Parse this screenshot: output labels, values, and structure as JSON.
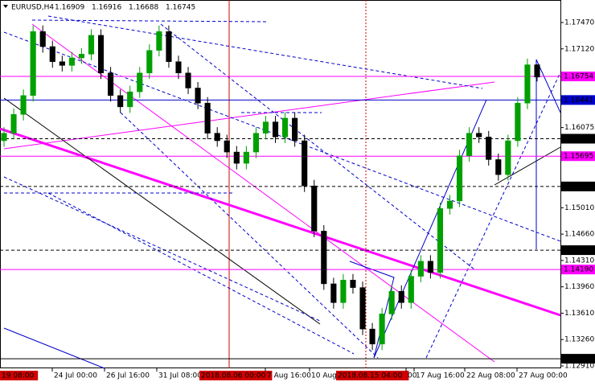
{
  "chart_data": {
    "type": "candlestick",
    "title": "EURUSD,H4",
    "open": [
      1.159,
      1.16,
      1.1625,
      1.165,
      1.1735,
      1.1715,
      1.1695,
      1.169,
      1.17,
      1.1705,
      1.173,
      1.168,
      1.165,
      1.1635,
      1.1655,
      1.168,
      1.171,
      1.1735,
      1.1695,
      1.168,
      1.166,
      1.164,
      1.16,
      1.159,
      1.1575,
      1.156,
      1.1575,
      1.16,
      1.1615,
      1.1595,
      1.162,
      1.159,
      1.153,
      1.147,
      1.14,
      1.1375,
      1.1405,
      1.1395,
      1.134,
      1.132,
      1.136,
      1.139,
      1.1375,
      1.141,
      1.143,
      1.1415,
      1.15,
      1.151,
      1.157,
      1.16,
      1.1595,
      1.1565,
      1.1545,
      1.159,
      1.164,
      1.16909
    ],
    "high": [
      1.1608,
      1.1633,
      1.1658,
      1.1743,
      1.1743,
      1.1723,
      1.1703,
      1.1708,
      1.1713,
      1.1738,
      1.1738,
      1.1688,
      1.1658,
      1.1663,
      1.1688,
      1.1718,
      1.1743,
      1.1743,
      1.1703,
      1.1688,
      1.1668,
      1.1648,
      1.1608,
      1.1598,
      1.1583,
      1.1583,
      1.1608,
      1.1623,
      1.1623,
      1.1628,
      1.1628,
      1.1598,
      1.1538,
      1.1478,
      1.1408,
      1.1413,
      1.1413,
      1.1403,
      1.1348,
      1.1368,
      1.1398,
      1.1398,
      1.1418,
      1.1438,
      1.1438,
      1.1508,
      1.1518,
      1.1578,
      1.1608,
      1.1608,
      1.1603,
      1.1573,
      1.1598,
      1.1648,
      1.1699,
      1.16916
    ],
    "low": [
      1.1582,
      1.1592,
      1.1617,
      1.1642,
      1.1707,
      1.1687,
      1.1682,
      1.1682,
      1.1692,
      1.1697,
      1.1672,
      1.1642,
      1.1627,
      1.1627,
      1.1647,
      1.1672,
      1.1702,
      1.1687,
      1.1672,
      1.1652,
      1.1632,
      1.1592,
      1.1582,
      1.1567,
      1.1552,
      1.1552,
      1.1567,
      1.1592,
      1.1587,
      1.1587,
      1.1582,
      1.1522,
      1.1462,
      1.1392,
      1.1367,
      1.1367,
      1.1387,
      1.1332,
      1.1312,
      1.1312,
      1.1352,
      1.1367,
      1.1367,
      1.1402,
      1.1407,
      1.1407,
      1.1492,
      1.1502,
      1.1562,
      1.1587,
      1.1557,
      1.1537,
      1.1537,
      1.1582,
      1.1632,
      1.16688
    ],
    "close": [
      1.16,
      1.1625,
      1.165,
      1.1735,
      1.1715,
      1.1695,
      1.169,
      1.17,
      1.1705,
      1.173,
      1.168,
      1.165,
      1.1635,
      1.1655,
      1.168,
      1.171,
      1.1735,
      1.1695,
      1.168,
      1.166,
      1.164,
      1.16,
      1.159,
      1.1575,
      1.156,
      1.1575,
      1.16,
      1.1615,
      1.1595,
      1.162,
      1.159,
      1.153,
      1.147,
      1.14,
      1.1375,
      1.1405,
      1.1395,
      1.134,
      1.132,
      1.136,
      1.139,
      1.1375,
      1.141,
      1.143,
      1.1415,
      1.15,
      1.151,
      1.157,
      1.16,
      1.1595,
      1.1565,
      1.1545,
      1.159,
      1.164,
      1.16909,
      1.16745
    ],
    "up_color": "#00a000",
    "down_color": "#000000",
    "ylim": [
      1.12878,
      1.17769
    ],
    "yticks": [
      {
        "value": 1.1747,
        "label": "1.17470"
      },
      {
        "value": 1.1712,
        "label": "1.17120"
      },
      {
        "value": 1.16075,
        "label": "1.16075"
      },
      {
        "value": 1.1501,
        "label": "1.15010"
      },
      {
        "value": 1.1466,
        "label": "1.14660"
      },
      {
        "value": 1.1431,
        "label": "1.14310"
      },
      {
        "value": 1.1396,
        "label": "1.13960"
      },
      {
        "value": 1.1361,
        "label": "1.13610"
      },
      {
        "value": 1.1326,
        "label": "1.13260"
      },
      {
        "value": 1.1291,
        "label": "1.12910"
      }
    ],
    "levels": [
      {
        "value": 1.16754,
        "color": "#ff00ff",
        "dashed": false
      },
      {
        "value": 1.16441,
        "color": "#0000cc",
        "dashed": false
      },
      {
        "value": 1.15927,
        "color": "#000000",
        "dashed": true
      },
      {
        "value": 1.15695,
        "color": "#ff00ff",
        "dashed": false
      },
      {
        "value": 1.15293,
        "color": "#000000",
        "dashed": true
      },
      {
        "value": 1.14447,
        "color": "#000000",
        "dashed": true
      },
      {
        "value": {
          "value": 1.1419,
          "label": "1.14190"
        },
        "color": "#ff00ff",
        "dashed": false
      },
      {
        "value": 1.13005,
        "color": "#000000",
        "dashed": false
      }
    ],
    "time_labels": [
      "19 08:00",
      "24 Jul 00:00",
      "26 Jul 16:00",
      "31 Jul 08:00",
      "2018.08.06 00:00",
      "7 Aug 16:00",
      "10 Aug",
      "2018.08.15 04:00",
      "00",
      "17 Aug 16:00",
      "22 Aug 08:00",
      "27 Aug 00:00"
    ],
    "highlighted_time_labels": [
      "19 08:00",
      "2018.08.06 00:00",
      "2018.08.15 04:00"
    ]
  }
}
